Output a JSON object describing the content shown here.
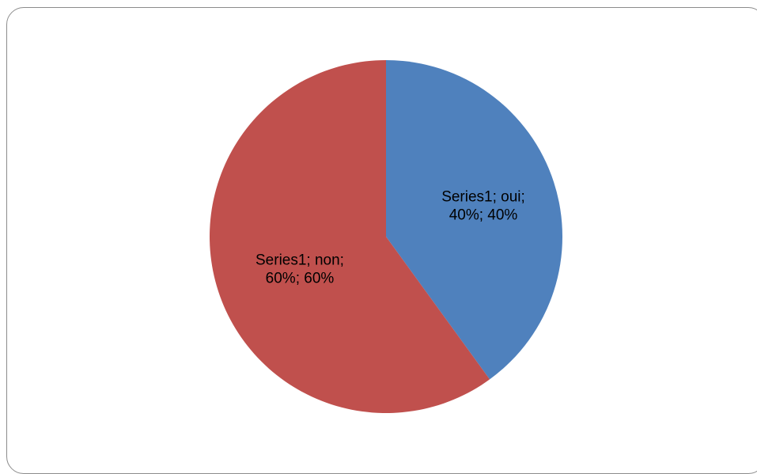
{
  "chart_data": {
    "type": "pie",
    "series": [
      {
        "name": "Series1",
        "slices": [
          {
            "category": "oui",
            "value": 40,
            "color": "#4f81bd",
            "label_lines": [
              "Series1; oui;",
              "40%; 40%"
            ]
          },
          {
            "category": "non",
            "value": 60,
            "color": "#c0504d",
            "label_lines": [
              "Series1; non;",
              "60%; 60%"
            ]
          }
        ]
      }
    ],
    "start_angle_deg": 0,
    "direction": "clockwise",
    "title": "",
    "legend": "none"
  }
}
